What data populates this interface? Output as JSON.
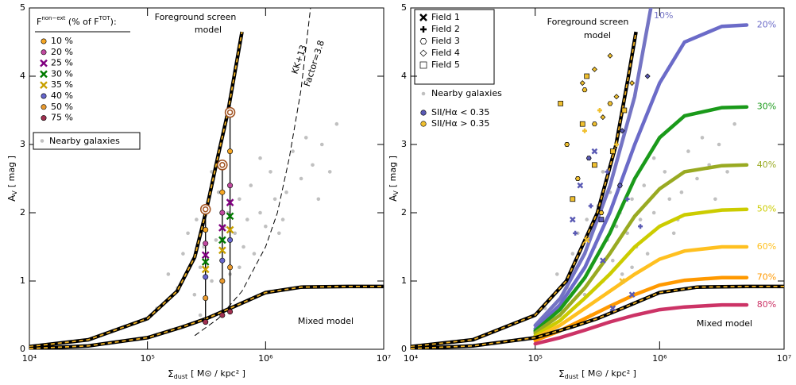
{
  "chart_data": [
    {
      "type": "scatter",
      "xscale": "log",
      "xlim": [
        10000,
        10000000
      ],
      "ylim": [
        0,
        5
      ],
      "xticks": [
        {
          "value": 10000,
          "label": "10⁴"
        },
        {
          "value": 100000,
          "label": "10⁵"
        },
        {
          "value": 1000000,
          "label": "10⁶"
        },
        {
          "value": 10000000,
          "label": "10⁷"
        }
      ],
      "yticks": [
        0,
        1,
        2,
        3,
        4,
        5
      ],
      "xlabel": {
        "symbol": "Σ",
        "sub": "dust",
        "unit": "[ M⊙ / kpc² ]"
      },
      "ylabel": {
        "symbol": "A",
        "sub": "V",
        "unit": "[ mag ]"
      },
      "annotations": [
        "Foreground screen",
        "model",
        "Mixed model",
        "KK+13",
        "Factor=3.8"
      ],
      "foreground": {
        "x": [
          10000,
          31600,
          100000,
          178000,
          251000,
          316000,
          398000,
          479000,
          631000
        ],
        "values": [
          0.04,
          0.14,
          0.45,
          0.85,
          1.35,
          2.05,
          2.85,
          3.47,
          4.65
        ]
      },
      "mixed": {
        "x": [
          10000,
          31600,
          100000,
          200000,
          316000,
          500000,
          1000000,
          2000000,
          5000000,
          10000000
        ],
        "values": [
          0.01,
          0.05,
          0.17,
          0.33,
          0.45,
          0.6,
          0.83,
          0.91,
          0.92,
          0.92
        ]
      },
      "kk13": {
        "x": [
          251000,
          398000,
          631000,
          1000000,
          1259000,
          1585000,
          1995000,
          2400000
        ],
        "values": [
          0.2,
          0.45,
          0.85,
          1.5,
          2.0,
          2.8,
          3.8,
          5.0
        ]
      },
      "legend_title": {
        "main": "F",
        "sup1": "non−ext",
        "mid": " (% of F",
        "sup2": "TOT",
        "end": "):"
      },
      "vlines": {
        "x": [
          310000,
          430000,
          500000
        ],
        "bottom": [
          0.4,
          0.5,
          0.55
        ],
        "top": [
          2.05,
          2.7,
          3.47
        ],
        "color": "#a0501e"
      },
      "series": [
        {
          "name": "10 %",
          "color": "#f5a623",
          "marker": "circle",
          "x": [
            310000,
            430000,
            500000
          ],
          "values": [
            1.75,
            2.3,
            2.9
          ]
        },
        {
          "name": "20 %",
          "color": "#c04aa0",
          "marker": "circle",
          "x": [
            310000,
            430000,
            500000
          ],
          "values": [
            1.55,
            2.0,
            2.4
          ]
        },
        {
          "name": "25 %",
          "color": "#800080",
          "marker": "x",
          "x": [
            310000,
            430000,
            500000
          ],
          "values": [
            1.38,
            1.78,
            2.15
          ]
        },
        {
          "name": "30 %",
          "color": "#007a00",
          "marker": "x",
          "x": [
            310000,
            430000,
            500000
          ],
          "values": [
            1.28,
            1.6,
            1.95
          ]
        },
        {
          "name": "35 %",
          "color": "#c8a000",
          "marker": "x",
          "x": [
            310000,
            430000,
            500000
          ],
          "values": [
            1.17,
            1.45,
            1.75
          ]
        },
        {
          "name": "40 %",
          "color": "#6666cc",
          "marker": "circle",
          "x": [
            310000,
            430000,
            500000
          ],
          "values": [
            1.06,
            1.3,
            1.6
          ]
        },
        {
          "name": "50 %",
          "color": "#e89a30",
          "marker": "circle",
          "x": [
            310000,
            430000,
            500000
          ],
          "values": [
            0.75,
            1.0,
            1.2
          ]
        },
        {
          "name": "75 %",
          "color": "#a03050",
          "marker": "circle",
          "x": [
            310000,
            430000,
            500000
          ],
          "values": [
            0.4,
            0.5,
            0.55
          ]
        }
      ],
      "galaxies": {
        "name": "Nearby galaxies",
        "color": "#c0c0c0",
        "x": [
          120000,
          150000,
          180000,
          200000,
          220000,
          250000,
          260000,
          280000,
          300000,
          320000,
          350000,
          380000,
          400000,
          420000,
          450000,
          480000,
          500000,
          550000,
          600000,
          650000,
          700000,
          750000,
          800000,
          900000,
          1000000,
          1100000,
          1200000,
          1300000,
          1500000,
          1700000,
          2000000,
          2200000,
          2500000,
          3000000,
          3500000,
          4000000,
          280000,
          350000,
          600000,
          900000,
          1400000,
          2800000
        ],
        "values": [
          0.6,
          1.1,
          0.9,
          1.4,
          1.7,
          0.8,
          1.9,
          1.2,
          1.5,
          2.1,
          1.0,
          1.6,
          2.3,
          1.3,
          1.8,
          2.0,
          1.1,
          1.7,
          2.2,
          1.5,
          1.9,
          2.4,
          1.4,
          2.0,
          1.8,
          2.6,
          2.2,
          1.7,
          2.3,
          2.9,
          2.5,
          3.1,
          2.7,
          3.0,
          2.6,
          3.3,
          0.5,
          2.6,
          1.2,
          2.8,
          1.9,
          2.2
        ]
      }
    },
    {
      "type": "line",
      "xscale": "log",
      "xlim": [
        10000,
        10000000
      ],
      "ylim": [
        0,
        5
      ],
      "xticks": [
        {
          "value": 10000,
          "label": "10⁴"
        },
        {
          "value": 100000,
          "label": "10⁵"
        },
        {
          "value": 1000000,
          "label": "10⁶"
        },
        {
          "value": 10000000,
          "label": "10⁷"
        }
      ],
      "yticks": [
        0,
        1,
        2,
        3,
        4,
        5
      ],
      "xlabel": {
        "symbol": "Σ",
        "sub": "dust",
        "unit": "[ M⊙ / kpc² ]"
      },
      "ylabel": {
        "symbol": "A",
        "sub": "V",
        "unit": "[ mag ]"
      },
      "annotations": [
        "Foreground screen",
        "model",
        "Mixed model"
      ],
      "foreground": {
        "x": [
          10000,
          31600,
          100000,
          178000,
          316000,
          447000,
          562000,
          646000
        ],
        "values": [
          0.04,
          0.14,
          0.5,
          1.0,
          2.0,
          3.0,
          4.0,
          4.65
        ]
      },
      "mixed": {
        "x": [
          10000,
          31600,
          100000,
          200000,
          316000,
          500000,
          1000000,
          2000000,
          5000000,
          10000000
        ],
        "values": [
          0.01,
          0.05,
          0.17,
          0.33,
          0.45,
          0.6,
          0.83,
          0.91,
          0.92,
          0.92
        ]
      },
      "series": [
        {
          "name": "10%",
          "color": "#7474c4",
          "x": [
            100000,
            160000,
            250000,
            400000,
            630000,
            850000
          ],
          "values": [
            0.35,
            0.75,
            1.4,
            2.4,
            3.7,
            5.0
          ]
        },
        {
          "name": "20%",
          "color": "#6b6bc8",
          "x": [
            100000,
            158000,
            251000,
            398000,
            631000,
            1000000,
            1585000,
            3162000,
            5012000
          ],
          "values": [
            0.3,
            0.65,
            1.2,
            2.0,
            3.0,
            3.9,
            4.5,
            4.73,
            4.75
          ]
        },
        {
          "name": "30%",
          "color": "#1a9a1a",
          "x": [
            100000,
            158000,
            251000,
            398000,
            631000,
            1000000,
            1585000,
            3162000,
            5012000
          ],
          "values": [
            0.27,
            0.58,
            1.05,
            1.7,
            2.5,
            3.1,
            3.42,
            3.54,
            3.55
          ]
        },
        {
          "name": "40%",
          "color": "#99aa22",
          "x": [
            100000,
            158000,
            251000,
            398000,
            631000,
            1000000,
            1585000,
            3162000,
            5012000
          ],
          "values": [
            0.24,
            0.5,
            0.9,
            1.4,
            1.95,
            2.35,
            2.6,
            2.69,
            2.7
          ]
        },
        {
          "name": "50%",
          "color": "#cccc00",
          "x": [
            100000,
            158000,
            251000,
            398000,
            631000,
            1000000,
            1585000,
            3162000,
            5012000
          ],
          "values": [
            0.2,
            0.42,
            0.75,
            1.1,
            1.5,
            1.8,
            1.97,
            2.04,
            2.05
          ]
        },
        {
          "name": "60%",
          "color": "#ffc020",
          "x": [
            100000,
            158000,
            251000,
            398000,
            631000,
            1000000,
            1585000,
            3162000,
            5012000
          ],
          "values": [
            0.17,
            0.35,
            0.6,
            0.85,
            1.1,
            1.32,
            1.44,
            1.5,
            1.5
          ]
        },
        {
          "name": "70%",
          "color": "#ff9900",
          "x": [
            100000,
            158000,
            251000,
            398000,
            631000,
            1000000,
            1585000,
            3162000,
            5012000
          ],
          "values": [
            0.13,
            0.27,
            0.45,
            0.63,
            0.8,
            0.94,
            1.01,
            1.05,
            1.05
          ]
        },
        {
          "name": "80%",
          "color": "#cc3366",
          "x": [
            100000,
            158000,
            251000,
            398000,
            631000,
            1000000,
            1585000,
            3162000,
            5012000
          ],
          "values": [
            0.08,
            0.17,
            0.28,
            0.4,
            0.5,
            0.58,
            0.62,
            0.65,
            0.65
          ]
        }
      ],
      "fields": [
        {
          "name": "Field 1",
          "marker": "x",
          "x": [
            200000,
            230000,
            260000,
            300000,
            350000,
            420000,
            500000,
            600000
          ],
          "values": [
            1.9,
            2.4,
            1.6,
            2.9,
            1.3,
            0.6,
            1.0,
            0.8
          ],
          "colors": [
            "#5a5ab4",
            "#5a5ab4",
            "#f0c030",
            "#5a5ab4",
            "#5a5ab4",
            "#5a5ab4",
            "#f0c030",
            "#5a5ab4"
          ]
        },
        {
          "name": "Field 2",
          "marker": "plus",
          "x": [
            210000,
            250000,
            280000,
            330000,
            380000,
            450000,
            550000,
            700000
          ],
          "values": [
            1.7,
            3.2,
            2.1,
            3.5,
            2.6,
            3.0,
            2.2,
            1.8
          ],
          "colors": [
            "#5a5ab4",
            "#f0c030",
            "#5a5ab4",
            "#f0c030",
            "#5a5ab4",
            "#f0c030",
            "#5a5ab4",
            "#5a5ab4"
          ]
        },
        {
          "name": "Field 3",
          "marker": "hexagon",
          "x": [
            180000,
            220000,
            250000,
            270000,
            300000,
            340000,
            400000,
            480000
          ],
          "values": [
            3.0,
            2.5,
            3.8,
            2.8,
            3.3,
            2.0,
            3.6,
            2.4
          ],
          "colors": [
            "#f0c030",
            "#f0c030",
            "#f0c030",
            "#5a5ab4",
            "#f0c030",
            "#f0c030",
            "#f0c030",
            "#5a5ab4"
          ]
        },
        {
          "name": "Field 4",
          "marker": "diamond",
          "x": [
            240000,
            300000,
            350000,
            400000,
            450000,
            500000,
            600000,
            800000
          ],
          "values": [
            3.9,
            4.1,
            3.4,
            4.3,
            3.7,
            3.2,
            3.9,
            4.0
          ],
          "colors": [
            "#f0c030",
            "#f0c030",
            "#f0c030",
            "#f0c030",
            "#f0c030",
            "#5a5ab4",
            "#f0c030",
            "#5a5ab4"
          ]
        },
        {
          "name": "Field 5",
          "marker": "square",
          "x": [
            160000,
            200000,
            240000,
            260000,
            300000,
            340000,
            420000,
            520000
          ],
          "values": [
            3.6,
            2.2,
            3.3,
            4.0,
            2.7,
            1.9,
            2.9,
            3.5
          ],
          "colors": [
            "#f0c030",
            "#f0c030",
            "#f0c030",
            "#f0c030",
            "#f0c030",
            "#5a5ab4",
            "#f0c030",
            "#f0c030"
          ]
        }
      ],
      "ratio_legend": [
        {
          "name": "SII/Hα < 0.35",
          "color": "#5a5ab4"
        },
        {
          "name": "SII/Hα > 0.35",
          "color": "#f0c030"
        }
      ],
      "galaxies": {
        "name": "Nearby galaxies",
        "color": "#c0c0c0",
        "x": [
          120000,
          150000,
          180000,
          200000,
          220000,
          250000,
          260000,
          280000,
          300000,
          320000,
          350000,
          380000,
          400000,
          420000,
          450000,
          480000,
          500000,
          550000,
          600000,
          650000,
          700000,
          750000,
          800000,
          900000,
          1000000,
          1100000,
          1200000,
          1300000,
          1500000,
          1700000,
          2000000,
          2200000,
          2500000,
          3000000,
          3500000,
          4000000,
          280000,
          350000,
          600000,
          900000,
          1400000,
          2800000
        ],
        "values": [
          0.6,
          1.1,
          0.9,
          1.4,
          1.7,
          0.8,
          1.9,
          1.2,
          1.5,
          2.1,
          1.0,
          1.6,
          2.3,
          1.3,
          1.8,
          2.0,
          1.1,
          1.7,
          2.2,
          1.5,
          1.9,
          2.4,
          1.4,
          2.0,
          1.8,
          2.6,
          2.2,
          1.7,
          2.3,
          2.9,
          2.5,
          3.1,
          2.7,
          3.0,
          2.6,
          3.3,
          0.5,
          2.6,
          1.2,
          2.8,
          1.9,
          2.2
        ]
      }
    }
  ]
}
